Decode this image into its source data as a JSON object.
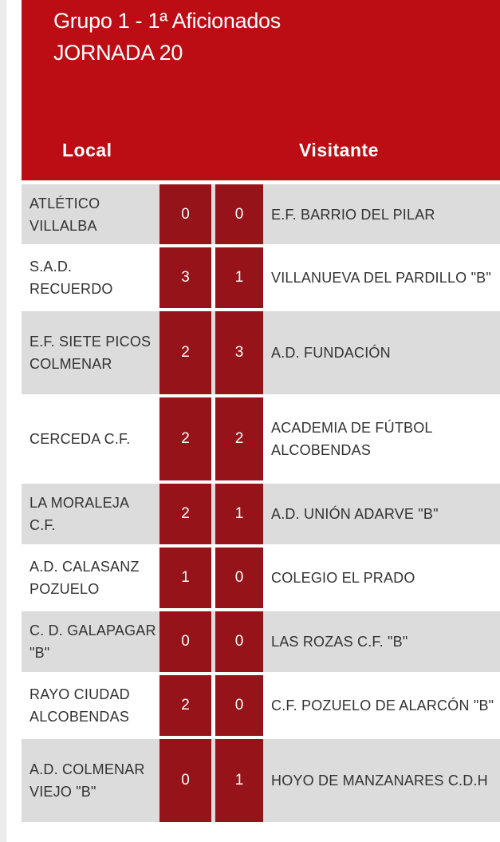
{
  "header": {
    "title": "Grupo 1 - 1ª Aficionados",
    "subtitle": "JORNADA 20",
    "local_label": "Local",
    "visitor_label": "Visitante"
  },
  "matches": [
    {
      "local": "ATLÉTICO VILLALBA",
      "home_score": "0",
      "away_score": "0",
      "visitor": "E.F. BARRIO DEL PILAR"
    },
    {
      "local": "S.A.D. RECUERDO",
      "home_score": "3",
      "away_score": "1",
      "visitor": "VILLANUEVA DEL PARDILLO \"B\""
    },
    {
      "local": "E.F. SIETE PICOS COLMENAR",
      "home_score": "2",
      "away_score": "3",
      "visitor": "A.D. FUNDACIÓN"
    },
    {
      "local": "CERCEDA C.F.",
      "home_score": "2",
      "away_score": "2",
      "visitor": "ACADEMIA DE FÚTBOL ALCOBENDAS"
    },
    {
      "local": "LA MORALEJA C.F.",
      "home_score": "2",
      "away_score": "1",
      "visitor": "A.D. UNIÓN ADARVE \"B\""
    },
    {
      "local": "A.D. CALASANZ POZUELO",
      "home_score": "1",
      "away_score": "0",
      "visitor": "COLEGIO EL PRADO"
    },
    {
      "local": "C. D. GALAPAGAR \"B\"",
      "home_score": "0",
      "away_score": "0",
      "visitor": "LAS ROZAS C.F. \"B\""
    },
    {
      "local": "RAYO CIUDAD ALCOBENDAS",
      "home_score": "2",
      "away_score": "0",
      "visitor": "C.F. POZUELO DE ALARCÓN \"B\""
    },
    {
      "local": "A.D. COLMENAR VIEJO \"B\"",
      "home_score": "0",
      "away_score": "1",
      "visitor": "HOYO DE MANZANARES C.D.H"
    }
  ],
  "colors": {
    "header": "#bd0d14",
    "score_box": "#961319",
    "row_alt": "#dcdcdc"
  }
}
